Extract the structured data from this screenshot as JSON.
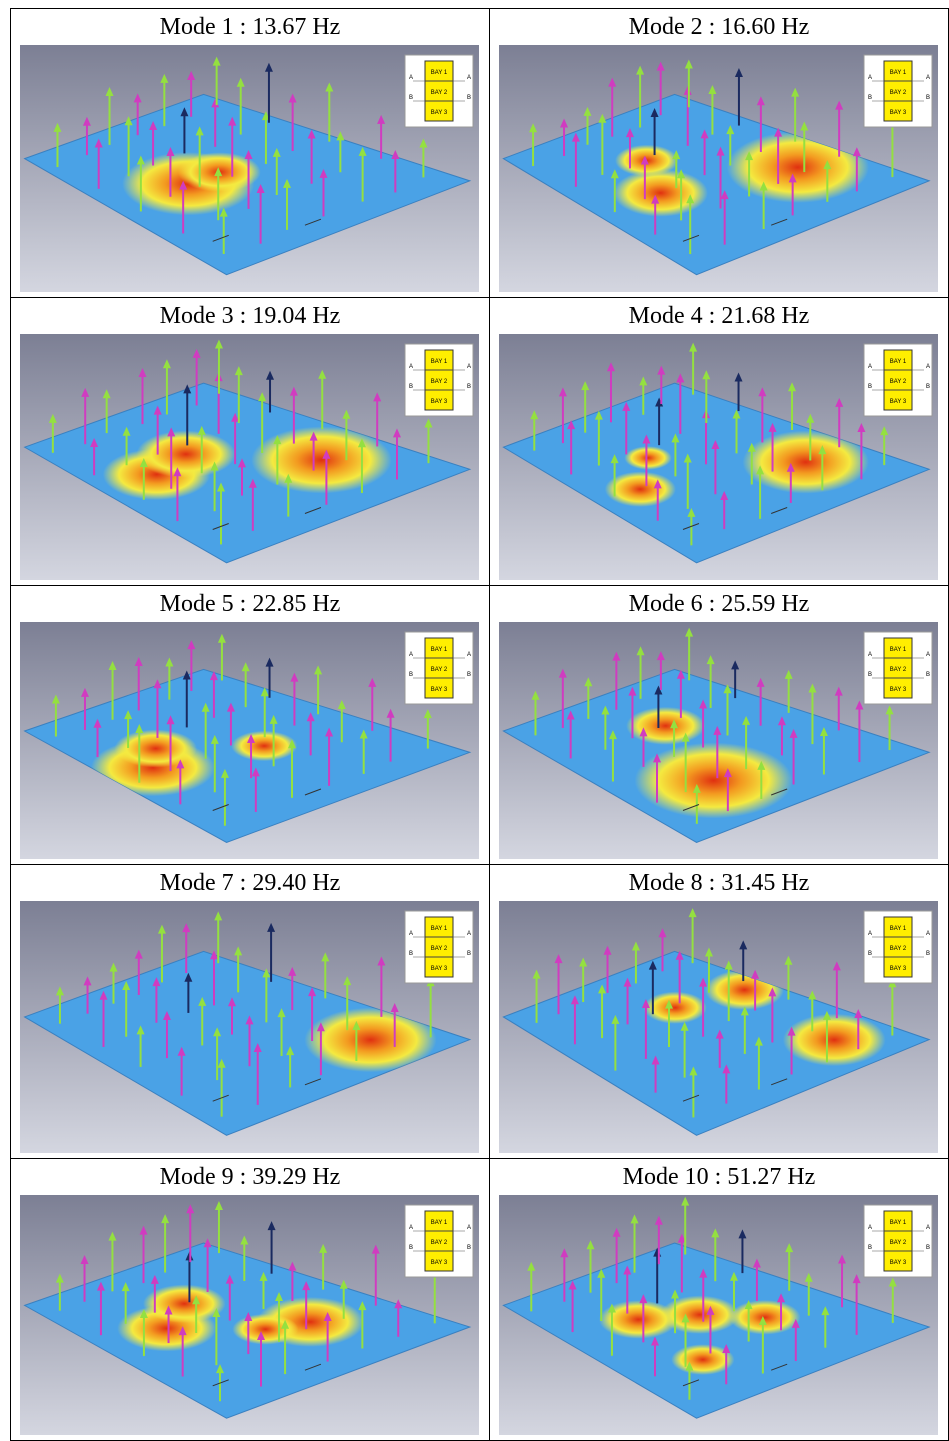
{
  "panels": [
    {
      "title": "Mode 1 : 13.67 Hz"
    },
    {
      "title": "Mode 2 : 16.60 Hz"
    },
    {
      "title": "Mode 3 : 19.04 Hz"
    },
    {
      "title": "Mode 4 : 21.68 Hz"
    },
    {
      "title": "Mode 5 : 22.85 Hz"
    },
    {
      "title": "Mode 6 : 25.59 Hz"
    },
    {
      "title": "Mode 7 : 29.40 Hz"
    },
    {
      "title": "Mode 8 : 31.45 Hz"
    },
    {
      "title": "Mode 9 : 39.29 Hz"
    },
    {
      "title": "Mode 10 : 51.27 Hz"
    }
  ],
  "legend": {
    "bays": [
      "BAY 1",
      "BAY 2",
      "BAY 3"
    ],
    "sections": [
      "A",
      "B"
    ]
  }
}
